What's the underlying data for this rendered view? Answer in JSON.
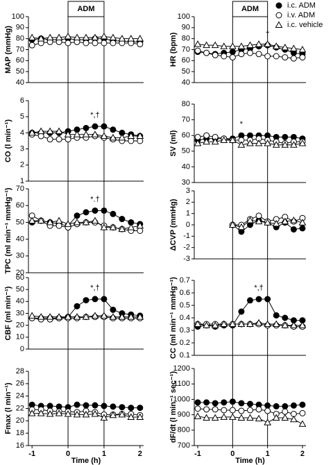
{
  "chart_data": [
    {
      "type": "line",
      "ylabel": "MAP (mmHg)",
      "x": [
        -1,
        -0.75,
        -0.5,
        -0.25,
        0,
        0.25,
        0.5,
        0.75,
        1,
        1.25,
        1.5,
        1.75,
        2
      ],
      "xlim": [
        -1.1,
        2.1
      ],
      "ylim": [
        40,
        100
      ],
      "yticks": [
        40,
        50,
        60,
        70,
        80,
        90,
        100
      ],
      "period": {
        "label": "ADM",
        "start": 0,
        "end": 1
      },
      "series": [
        {
          "name": "i.c. ADM",
          "marker": "filled-circle",
          "color": "#000",
          "values": [
            79,
            80,
            79,
            79,
            80,
            79,
            79,
            80,
            80,
            78,
            78,
            77,
            77
          ]
        },
        {
          "name": "i.v. ADM",
          "marker": "open-circle",
          "color": "#000",
          "values": [
            74,
            76,
            77,
            77,
            76,
            77,
            76,
            76,
            76,
            76,
            76,
            76,
            75
          ]
        },
        {
          "name": "i.c. vehicle",
          "marker": "open-triangle",
          "color": "#000",
          "values": [
            81,
            80,
            81,
            81,
            82,
            81,
            81,
            81,
            82,
            81,
            80,
            80,
            80
          ]
        }
      ]
    },
    {
      "type": "line",
      "ylabel": "HR (bpm)",
      "x": [
        -1,
        -0.75,
        -0.5,
        -0.25,
        0,
        0.25,
        0.5,
        0.75,
        1,
        1.25,
        1.5,
        1.75,
        2
      ],
      "xlim": [
        -1.1,
        2.1
      ],
      "ylim": [
        40,
        100
      ],
      "yticks": [
        40,
        50,
        60,
        70,
        80,
        90,
        100
      ],
      "period": {
        "label": "ADM",
        "start": 0,
        "end": 1
      },
      "annotation": "†",
      "series": [
        {
          "name": "i.c. ADM",
          "marker": "filled-circle",
          "color": "#000",
          "values": [
            68,
            67,
            66,
            67,
            68,
            70,
            71,
            73,
            74,
            72,
            70,
            67,
            66
          ]
        },
        {
          "name": "i.v. ADM",
          "marker": "open-circle",
          "color": "#000",
          "values": [
            69,
            67,
            65,
            64,
            63,
            66,
            67,
            66,
            64,
            64,
            63,
            62,
            63
          ]
        },
        {
          "name": "i.c. vehicle",
          "marker": "open-triangle",
          "color": "#000",
          "values": [
            75,
            74,
            74,
            73,
            73,
            73,
            74,
            75,
            75,
            73,
            72,
            71,
            70
          ]
        }
      ]
    },
    {
      "type": "line",
      "ylabel": "CO (l min⁻¹)",
      "x": [
        -1,
        -0.75,
        -0.5,
        -0.25,
        0,
        0.25,
        0.5,
        0.75,
        1,
        1.25,
        1.5,
        1.75,
        2
      ],
      "xlim": [
        -1.1,
        2.1
      ],
      "ylim": [
        1,
        6
      ],
      "yticks": [
        1,
        2,
        3,
        4,
        5,
        6
      ],
      "annotation": "*,†",
      "series": [
        {
          "name": "i.c. ADM",
          "marker": "filled-circle",
          "color": "#000",
          "values": [
            4.0,
            4.0,
            4.0,
            4.0,
            4.1,
            4.2,
            4.3,
            4.4,
            4.4,
            4.2,
            4.0,
            3.9,
            3.8
          ]
        },
        {
          "name": "i.v. ADM",
          "marker": "open-circle",
          "color": "#000",
          "values": [
            3.9,
            3.8,
            3.6,
            3.6,
            3.6,
            3.7,
            3.7,
            3.8,
            3.7,
            3.6,
            3.5,
            3.5,
            3.5
          ]
        },
        {
          "name": "i.c. vehicle",
          "marker": "open-triangle",
          "color": "#000",
          "values": [
            4.0,
            4.1,
            4.1,
            4.1,
            3.9,
            3.9,
            3.9,
            3.9,
            3.8,
            3.7,
            3.7,
            3.8,
            3.8
          ]
        }
      ]
    },
    {
      "type": "line",
      "ylabel": "SV (ml)",
      "x": [
        -1,
        -0.75,
        -0.5,
        -0.25,
        0,
        0.25,
        0.5,
        0.75,
        1,
        1.25,
        1.5,
        1.75,
        2
      ],
      "xlim": [
        -1.1,
        2.1
      ],
      "ylim": [
        30,
        80
      ],
      "yticks": [
        30,
        40,
        50,
        60,
        70,
        80
      ],
      "annotation": "*",
      "series": [
        {
          "name": "i.c. ADM",
          "marker": "filled-circle",
          "color": "#000",
          "values": [
            57,
            58,
            58,
            58,
            58,
            60,
            60,
            60,
            60,
            59,
            59,
            59,
            58
          ]
        },
        {
          "name": "i.v. ADM",
          "marker": "open-circle",
          "color": "#000",
          "values": [
            59,
            60,
            59,
            58,
            57,
            57,
            57,
            58,
            57,
            56,
            55,
            56,
            56
          ]
        },
        {
          "name": "i.c. vehicle",
          "marker": "open-triangle",
          "color": "#000",
          "values": [
            55,
            56,
            56,
            57,
            57,
            54,
            55,
            55,
            55,
            54,
            54,
            54,
            55
          ]
        }
      ]
    },
    {
      "type": "line",
      "ylabel": "TPC (ml min⁻¹ mmHg⁻¹)",
      "x": [
        -1,
        -0.75,
        -0.5,
        -0.25,
        0,
        0.25,
        0.5,
        0.75,
        1,
        1.25,
        1.5,
        1.75,
        2
      ],
      "xlim": [
        -1.1,
        2.1
      ],
      "ylim": [
        20,
        70
      ],
      "yticks": [
        20,
        30,
        40,
        50,
        60,
        70
      ],
      "annotation": "*.†",
      "series": [
        {
          "name": "i.c. ADM",
          "marker": "filled-circle",
          "color": "#000",
          "values": [
            50,
            51,
            50,
            49,
            48,
            54,
            56,
            57,
            57,
            55,
            52,
            50,
            49
          ]
        },
        {
          "name": "i.v. ADM",
          "marker": "open-circle",
          "color": "#000",
          "values": [
            54,
            51,
            48,
            48,
            47,
            49,
            50,
            50,
            48,
            47,
            46,
            45,
            45
          ]
        },
        {
          "name": "i.c. vehicle",
          "marker": "open-triangle",
          "color": "#000",
          "values": [
            51,
            51,
            50,
            51,
            49,
            50,
            50,
            51,
            47,
            47,
            46,
            47,
            48
          ]
        }
      ]
    },
    {
      "type": "line",
      "ylabel": "ΔCVP (mmHg)",
      "x": [
        -1,
        -0.75,
        -0.5,
        -0.25,
        0,
        0.25,
        0.5,
        0.75,
        1,
        1.25,
        1.5,
        1.75,
        2
      ],
      "xlim": [
        -1.1,
        2.1
      ],
      "ylim": [
        -3,
        3
      ],
      "yticks": [
        -3,
        -2,
        -1,
        0,
        1,
        2,
        3
      ],
      "series": [
        {
          "name": "i.c. ADM",
          "marker": "filled-circle",
          "color": "#000",
          "values": [
            null,
            null,
            null,
            null,
            0,
            -0.6,
            0,
            0.4,
            0.2,
            -0.2,
            0.2,
            -0.4,
            -0.3
          ]
        },
        {
          "name": "i.v. ADM",
          "marker": "open-circle",
          "color": "#000",
          "values": [
            null,
            null,
            null,
            null,
            0,
            0,
            0.5,
            0.8,
            0.3,
            0.5,
            0.7,
            0.3,
            0.6
          ]
        },
        {
          "name": "i.c. vehicle",
          "marker": "open-triangle",
          "color": "#000",
          "values": [
            null,
            null,
            null,
            null,
            0,
            -0.2,
            0.4,
            0.3,
            0.2,
            0.1,
            0.3,
            0.4,
            0.2
          ]
        }
      ]
    },
    {
      "type": "line",
      "ylabel": "CBF (ml min⁻¹)",
      "x": [
        -1,
        -0.75,
        -0.5,
        -0.25,
        0,
        0.25,
        0.5,
        0.75,
        1,
        1.25,
        1.5,
        1.75,
        2
      ],
      "xlim": [
        -1.1,
        2.1
      ],
      "ylim": [
        0,
        60
      ],
      "yticks": [
        0,
        10,
        20,
        30,
        40,
        50,
        60
      ],
      "annotation": "*,†",
      "series": [
        {
          "name": "i.c. ADM",
          "marker": "filled-circle",
          "color": "#000",
          "values": [
            26,
            26,
            26,
            26,
            27,
            36,
            41,
            42,
            42,
            33,
            30,
            29,
            28
          ]
        },
        {
          "name": "i.v. ADM",
          "marker": "open-circle",
          "color": "#000",
          "values": [
            26,
            25,
            25,
            26,
            26,
            26,
            27,
            27,
            27,
            26,
            26,
            26,
            26
          ]
        },
        {
          "name": "i.c. vehicle",
          "marker": "open-triangle",
          "color": "#000",
          "values": [
            28,
            27,
            27,
            27,
            27,
            27,
            27,
            28,
            28,
            27,
            27,
            27,
            27
          ]
        }
      ]
    },
    {
      "type": "line",
      "ylabel": "CC (ml min⁻¹ mmHg⁻¹)",
      "x": [
        -1,
        -0.75,
        -0.5,
        -0.25,
        0,
        0.25,
        0.5,
        0.75,
        1,
        1.25,
        1.5,
        1.75,
        2
      ],
      "xlim": [
        -1.1,
        2.1
      ],
      "ylim": [
        0.1,
        0.7
      ],
      "yticks": [
        0.1,
        0.2,
        0.3,
        0.4,
        0.5,
        0.6,
        0.7
      ],
      "annotation": "*,†",
      "series": [
        {
          "name": "i.c. ADM",
          "marker": "filled-circle",
          "color": "#000",
          "values": [
            0.33,
            0.34,
            0.33,
            0.34,
            0.34,
            0.45,
            0.54,
            0.55,
            0.55,
            0.42,
            0.4,
            0.38,
            0.38
          ]
        },
        {
          "name": "i.v. ADM",
          "marker": "open-circle",
          "color": "#000",
          "values": [
            0.35,
            0.35,
            0.35,
            0.35,
            0.35,
            0.35,
            0.35,
            0.35,
            0.34,
            0.34,
            0.34,
            0.33,
            0.33
          ]
        },
        {
          "name": "i.c. vehicle",
          "marker": "open-triangle",
          "color": "#000",
          "values": [
            0.35,
            0.34,
            0.34,
            0.35,
            0.35,
            0.35,
            0.35,
            0.36,
            0.35,
            0.35,
            0.34,
            0.34,
            0.34
          ]
        }
      ]
    },
    {
      "type": "line",
      "ylabel": "Fmax (l min⁻¹)",
      "xlabel": "Time (h)",
      "x": [
        -1,
        -0.75,
        -0.5,
        -0.25,
        0,
        0.25,
        0.5,
        0.75,
        1,
        1.25,
        1.5,
        1.75,
        2
      ],
      "xlim": [
        -1.1,
        2.1
      ],
      "xticks": [
        -1,
        0,
        1,
        2
      ],
      "ylim": [
        16,
        28
      ],
      "yticks": [
        16,
        18,
        20,
        22,
        24,
        26,
        28
      ],
      "series": [
        {
          "name": "i.c. ADM",
          "marker": "filled-circle",
          "color": "#000",
          "values": [
            22.6,
            22.4,
            22.4,
            22.3,
            22.2,
            22.6,
            22.5,
            22.5,
            22.4,
            22.3,
            22.2,
            22.1,
            22.1
          ]
        },
        {
          "name": "i.v. ADM",
          "marker": "open-circle",
          "color": "#000",
          "values": [
            21.8,
            21.8,
            21.6,
            21.5,
            21.5,
            21.4,
            21.6,
            21.4,
            21.0,
            21.0,
            21.1,
            21.1,
            20.9
          ]
        },
        {
          "name": "i.c. vehicle",
          "marker": "open-triangle",
          "color": "#000",
          "values": [
            21.2,
            21.2,
            21.1,
            21.2,
            21.1,
            21.0,
            21.0,
            21.1,
            20.5,
            20.9,
            21.0,
            20.6,
            20.6
          ]
        }
      ]
    },
    {
      "type": "line",
      "ylabel": "dF/dt (l min⁻¹ sec⁻¹)",
      "xlabel": "Time (h)",
      "x": [
        -1,
        -0.75,
        -0.5,
        -0.25,
        0,
        0.25,
        0.5,
        0.75,
        1,
        1.25,
        1.5,
        1.75,
        2
      ],
      "xlim": [
        -1.1,
        2.1
      ],
      "xticks": [
        -1,
        0,
        1,
        2
      ],
      "ylim": [
        700,
        1200
      ],
      "yticks": [
        700,
        800,
        900,
        1000,
        1100,
        1200
      ],
      "series": [
        {
          "name": "i.c. ADM",
          "marker": "filled-circle",
          "color": "#000",
          "values": [
            980,
            980,
            975,
            980,
            985,
            975,
            970,
            965,
            960,
            955,
            955,
            960,
            965
          ]
        },
        {
          "name": "i.v. ADM",
          "marker": "open-circle",
          "color": "#000",
          "values": [
            940,
            935,
            935,
            930,
            930,
            925,
            930,
            935,
            925,
            905,
            920,
            905,
            910
          ]
        },
        {
          "name": "i.c. vehicle",
          "marker": "open-triangle",
          "color": "#000",
          "values": [
            890,
            880,
            880,
            885,
            885,
            880,
            880,
            875,
            850,
            880,
            880,
            870,
            840
          ]
        }
      ]
    }
  ]
}
